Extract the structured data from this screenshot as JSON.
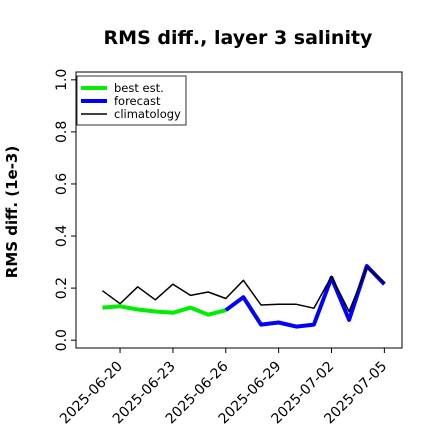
{
  "chart_data": {
    "type": "line",
    "title": "RMS diff., layer 3 salinity",
    "xlabel": "",
    "ylabel": "RMS diff. (1e-3)",
    "ylim": [
      -0.03,
      1.03
    ],
    "yticks": [
      0.0,
      0.2,
      0.4,
      0.6,
      0.8,
      1.0
    ],
    "ytick_labels": [
      "0.0",
      "0.2",
      "0.4",
      "0.6",
      "0.8",
      "1.0"
    ],
    "xlim": [
      "2025-06-17T12:00",
      "2025-07-06T00:00"
    ],
    "xticks": [
      "2025-06-20",
      "2025-06-23",
      "2025-06-26",
      "2025-06-29",
      "2025-07-02",
      "2025-07-05"
    ],
    "highlighted_tick": "2025-06-26",
    "highlight_color": "#008000",
    "grid": false,
    "legend_position": "top-left",
    "series": [
      {
        "name": "best est.",
        "color": "#00ee00",
        "x": [
          "2025-06-19",
          "2025-06-20",
          "2025-06-21",
          "2025-06-22",
          "2025-06-23",
          "2025-06-24",
          "2025-06-25",
          "2025-06-26"
        ],
        "values": [
          0.125,
          0.13,
          0.118,
          0.11,
          0.105,
          0.125,
          0.098,
          0.115
        ]
      },
      {
        "name": "forecast",
        "color": "#0000ff",
        "x": [
          "2025-06-26",
          "2025-06-27",
          "2025-06-28",
          "2025-06-29",
          "2025-06-30",
          "2025-07-01",
          "2025-07-02",
          "2025-07-03",
          "2025-07-04",
          "2025-07-05"
        ],
        "values": [
          0.115,
          0.165,
          0.06,
          0.068,
          0.052,
          0.06,
          0.24,
          0.078,
          0.285,
          0.215
        ]
      },
      {
        "name": "climatology",
        "color": "#000000",
        "x": [
          "2025-06-19",
          "2025-06-20",
          "2025-06-21",
          "2025-06-22",
          "2025-06-23",
          "2025-06-24",
          "2025-06-25",
          "2025-06-26",
          "2025-06-27",
          "2025-06-28",
          "2025-06-29",
          "2025-06-30",
          "2025-07-01",
          "2025-07-02",
          "2025-07-03",
          "2025-07-04",
          "2025-07-05"
        ],
        "values": [
          0.19,
          0.14,
          0.205,
          0.155,
          0.215,
          0.172,
          0.185,
          0.16,
          0.23,
          0.135,
          0.138,
          0.138,
          0.123,
          0.245,
          0.11,
          0.28,
          0.22
        ]
      }
    ]
  }
}
